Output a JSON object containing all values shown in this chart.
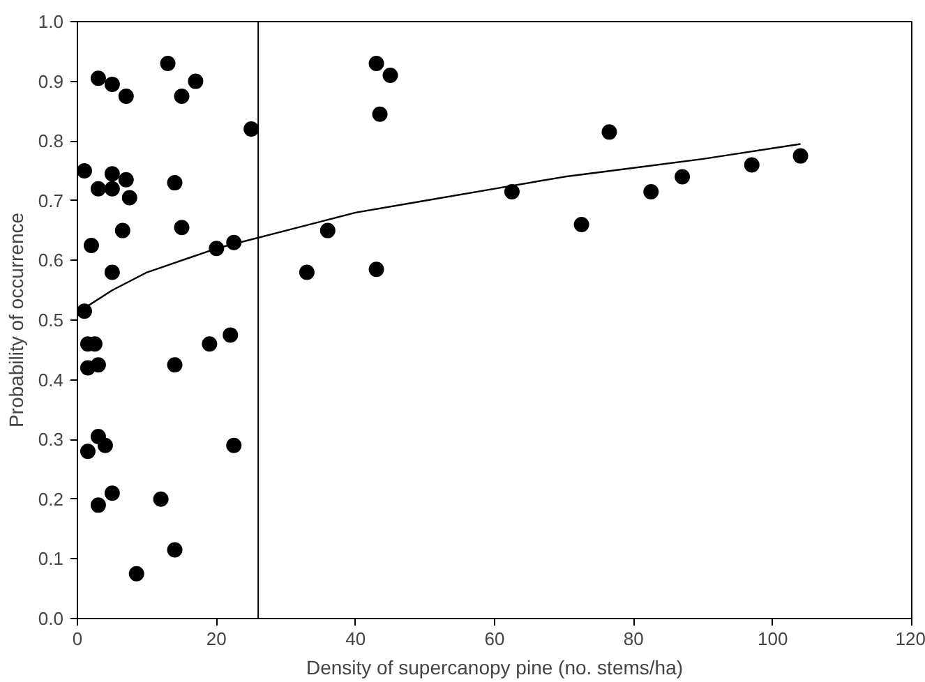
{
  "chart_data": {
    "type": "scatter",
    "xlabel": "Density of supercanopy pine (no. stems/ha)",
    "ylabel": "Probability of occurrence",
    "xlim": [
      0,
      120
    ],
    "ylim": [
      0,
      1
    ],
    "xticks": [
      0,
      20,
      40,
      60,
      80,
      100,
      120
    ],
    "yticks": [
      {
        "value": 0,
        "label": "0.0"
      },
      {
        "value": 0.1,
        "label": "0.1"
      },
      {
        "value": 0.2,
        "label": "0.2"
      },
      {
        "value": 0.3,
        "label": "0.3"
      },
      {
        "value": 0.4,
        "label": "0.4"
      },
      {
        "value": 0.5,
        "label": "0.5"
      },
      {
        "value": 0.6,
        "label": "0.6"
      },
      {
        "value": 0.7,
        "label": "0.7"
      },
      {
        "value": 0.8,
        "label": "0.8"
      },
      {
        "value": 0.9,
        "label": "0.9"
      },
      {
        "value": 1,
        "label": "1.0"
      }
    ],
    "grid": false,
    "ref_lines": [
      {
        "axis": "x",
        "value": 26,
        "color": "#000000"
      }
    ],
    "series": [
      {
        "marker": "circle",
        "color": "#000000",
        "x": [
          1,
          2,
          3,
          5,
          7,
          13,
          15,
          17,
          25,
          5,
          7,
          3,
          5,
          7.5,
          14,
          6.5,
          15,
          5,
          20,
          22.5,
          1,
          1.5,
          2.5,
          1.5,
          3,
          14,
          19,
          22,
          3,
          4,
          1.5,
          22.5,
          5,
          12,
          3,
          14,
          8.5,
          33,
          36,
          43,
          43,
          43.5,
          45,
          62.5,
          72.5,
          76.5,
          82.5,
          87,
          97,
          104
        ],
        "values": [
          0.75,
          0.625,
          0.905,
          0.895,
          0.875,
          0.93,
          0.875,
          0.9,
          0.82,
          0.745,
          0.735,
          0.72,
          0.72,
          0.705,
          0.73,
          0.65,
          0.655,
          0.58,
          0.62,
          0.63,
          0.515,
          0.46,
          0.46,
          0.42,
          0.425,
          0.425,
          0.46,
          0.475,
          0.305,
          0.29,
          0.28,
          0.29,
          0.21,
          0.2,
          0.19,
          0.115,
          0.075,
          0.58,
          0.65,
          0.585,
          0.93,
          0.845,
          0.91,
          0.715,
          0.66,
          0.815,
          0.715,
          0.74,
          0.76,
          0.775
        ]
      },
      {
        "type": "line",
        "color": "#000000",
        "x": [
          1,
          5,
          10,
          20,
          30,
          40,
          50,
          60,
          70,
          80,
          90,
          104
        ],
        "values": [
          0.52,
          0.55,
          0.58,
          0.62,
          0.65,
          0.68,
          0.7,
          0.72,
          0.74,
          0.755,
          0.77,
          0.795
        ]
      }
    ]
  }
}
